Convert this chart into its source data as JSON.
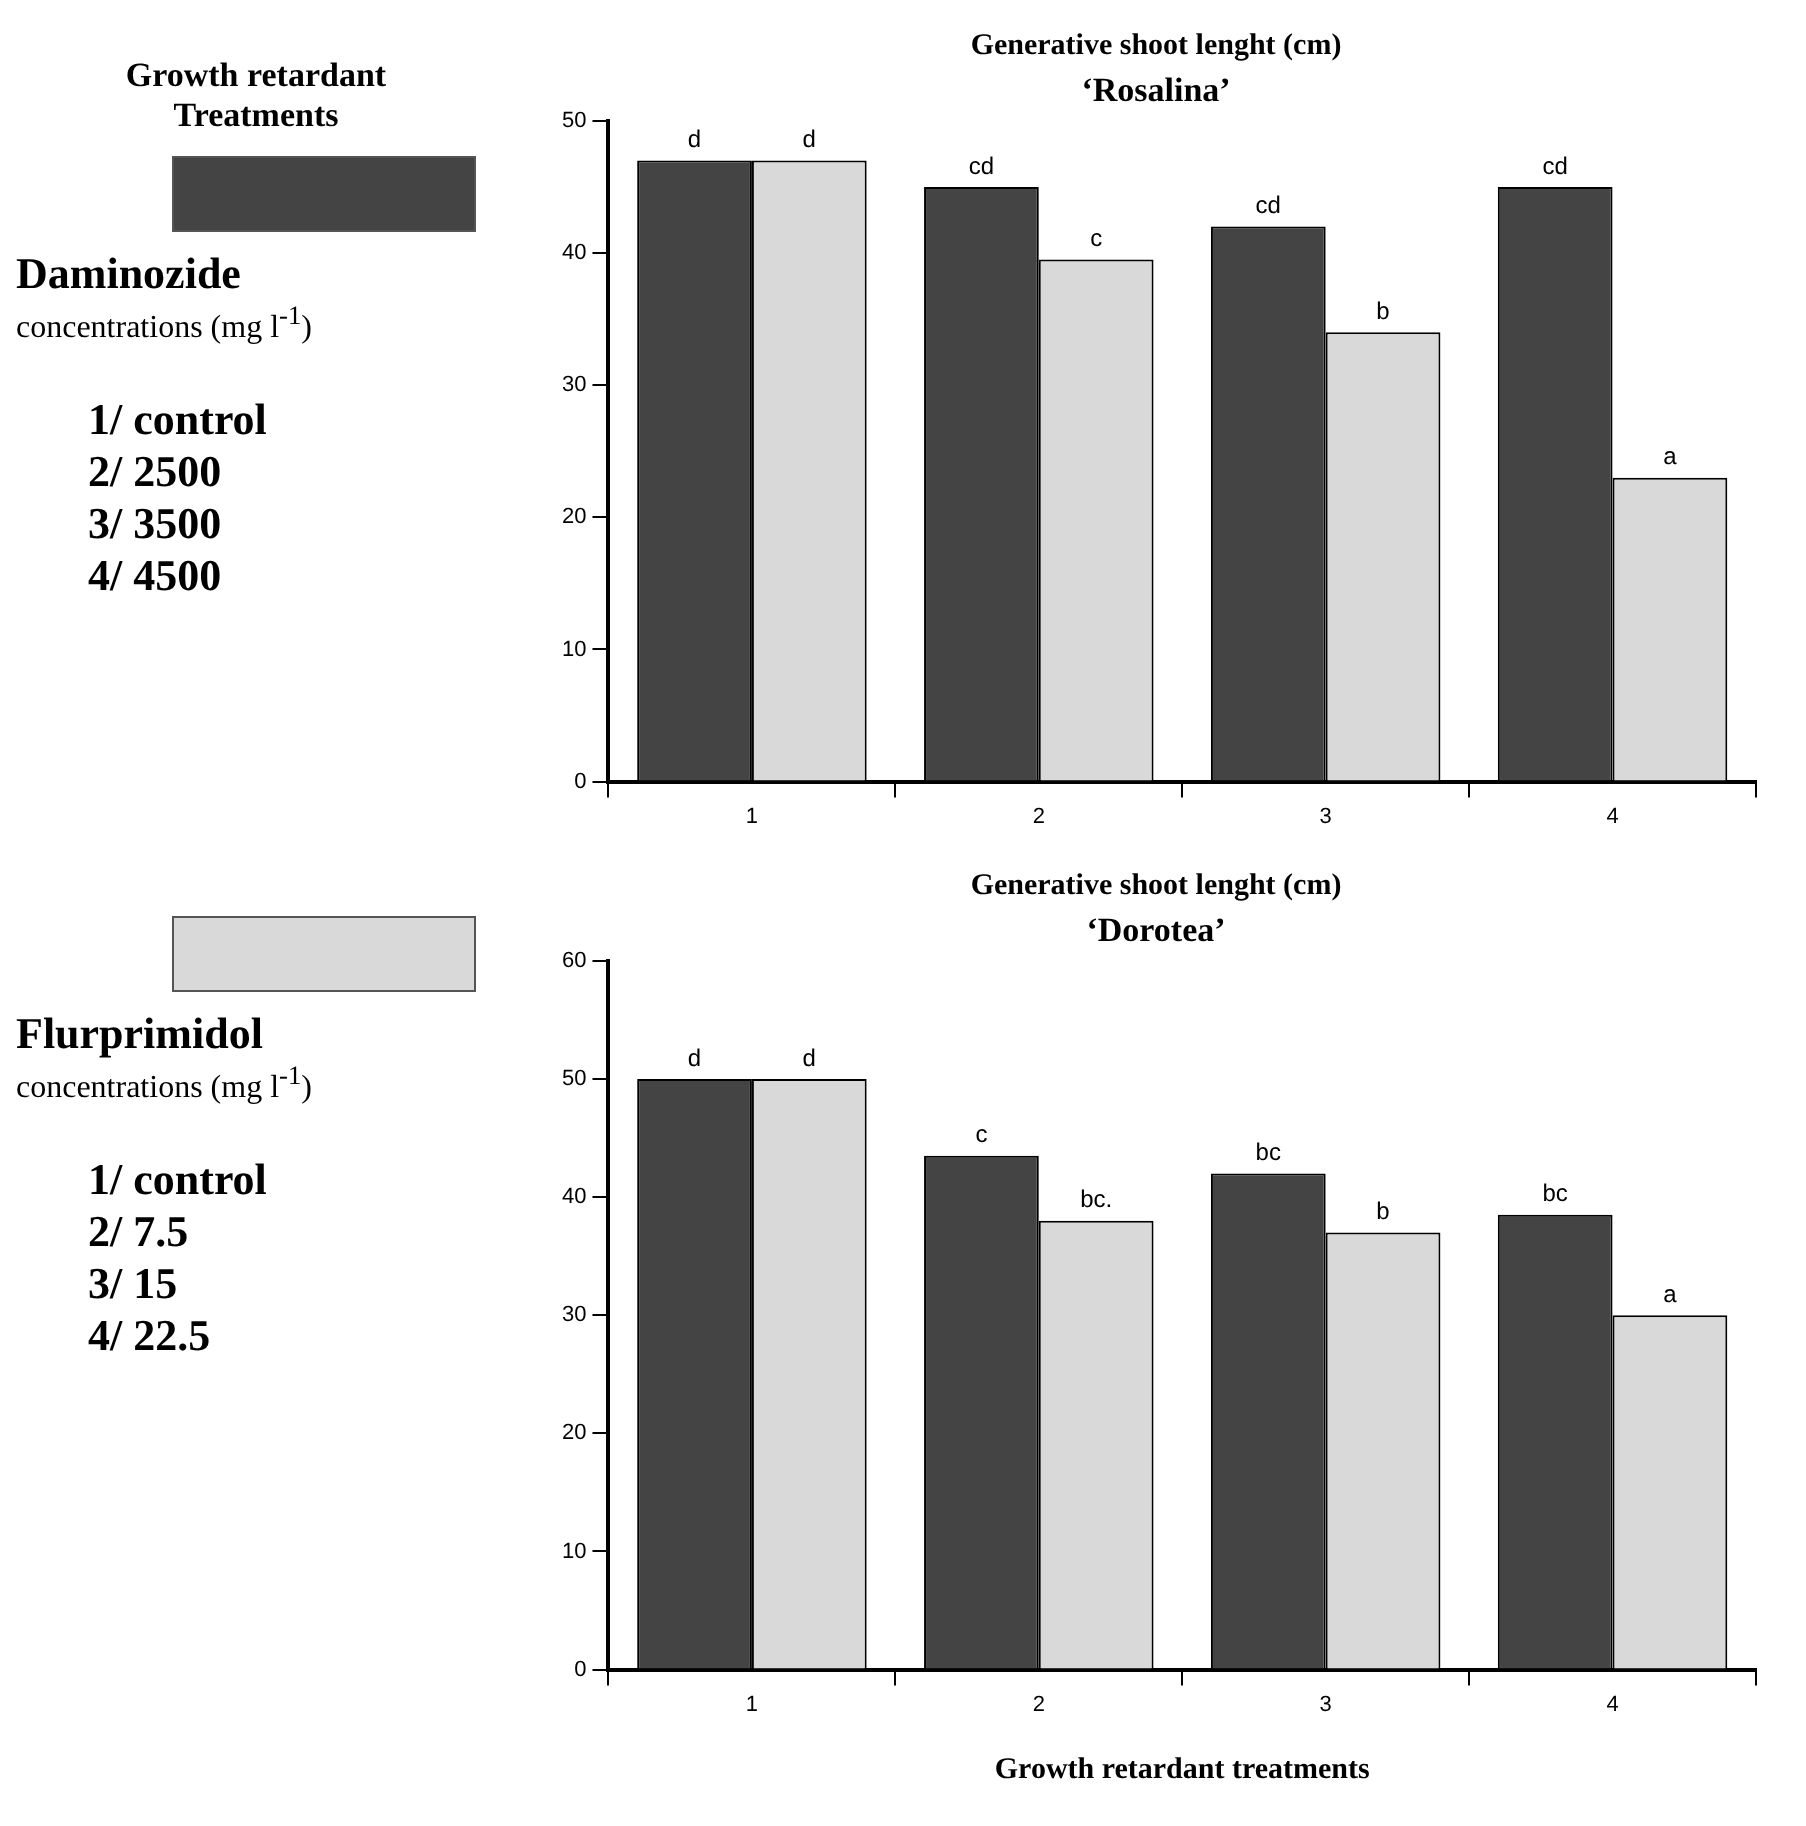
{
  "chart_data": [
    {
      "type": "bar",
      "title": "Generative shoot lenght (cm)",
      "subtitle": "‘Rosalina’",
      "categories": [
        "1",
        "2",
        "3",
        "4"
      ],
      "legend": "left",
      "legend_title": "Growth retardant Treatments",
      "annotations": [
        "concentrations (mg l$^{-1}$)",
        "1/ control",
        "2/ 2500",
        "3/ 3500",
        "4/ 4500"
      ],
      "series": [
        {
          "name": "Daminozide",
          "color": "#444444",
          "values": [
            47,
            45,
            42,
            45
          ],
          "value_labels": [
            "d",
            "cd",
            "cd",
            "cd"
          ]
        },
        {
          "color": "#d9d9d9",
          "values": [
            47,
            39.5,
            34,
            23
          ],
          "value_labels": [
            "d",
            "c",
            "b",
            "a"
          ]
        }
      ],
      "ylim": [
        0,
        50
      ],
      "yticks": [
        0,
        10,
        20,
        30,
        40,
        50
      ]
    },
    {
      "type": "bar",
      "title": "Generative shoot lenght (cm)",
      "subtitle": "‘Dorotea’",
      "xlabel": "Growth retardant treatments",
      "categories": [
        "1",
        "2",
        "3",
        "4"
      ],
      "legend": "left",
      "annotations": [
        "concentrations (mg l$^{-1}$)",
        "1/ control",
        "2/ 7.5",
        "3/ 15",
        "4/ 22.5"
      ],
      "series": [
        {
          "color": "#444444",
          "values": [
            50,
            43.5,
            42,
            38.5
          ],
          "value_labels": [
            "d",
            "c",
            "bc",
            "bc"
          ]
        },
        {
          "name": "Flurprimidol",
          "color": "#d9d9d9",
          "values": [
            50,
            38,
            37,
            30
          ],
          "value_labels": [
            "d",
            "bc.",
            "b",
            "a"
          ]
        }
      ],
      "ylim": [
        0,
        60
      ],
      "yticks": [
        0,
        10,
        20,
        30,
        40,
        50,
        60
      ]
    }
  ]
}
